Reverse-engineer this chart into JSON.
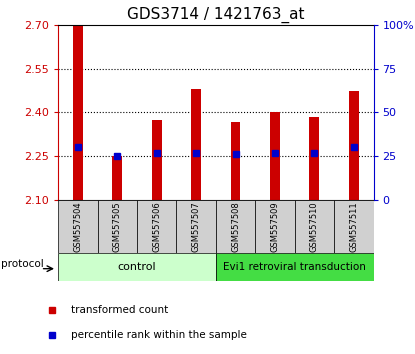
{
  "title": "GDS3714 / 1421763_at",
  "samples": [
    "GSM557504",
    "GSM557505",
    "GSM557506",
    "GSM557507",
    "GSM557508",
    "GSM557509",
    "GSM557510",
    "GSM557511"
  ],
  "red_values": [
    2.7,
    2.252,
    2.373,
    2.48,
    2.368,
    2.402,
    2.385,
    2.473
  ],
  "blue_percentiles": [
    30,
    25,
    27,
    27,
    26,
    27,
    27,
    30
  ],
  "y_min": 2.1,
  "y_max": 2.7,
  "y_ticks": [
    2.1,
    2.25,
    2.4,
    2.55,
    2.7
  ],
  "right_y_ticks": [
    0,
    25,
    50,
    75,
    100
  ],
  "bar_color": "#cc0000",
  "blue_color": "#0000cc",
  "control_label": "control",
  "treatment_label": "Evi1 retroviral transduction",
  "control_color": "#ccffcc",
  "treatment_color": "#44dd44",
  "protocol_label": "protocol",
  "legend_red": "transformed count",
  "legend_blue": "percentile rank within the sample",
  "title_fontsize": 11,
  "tick_fontsize": 8,
  "bar_width": 0.25
}
